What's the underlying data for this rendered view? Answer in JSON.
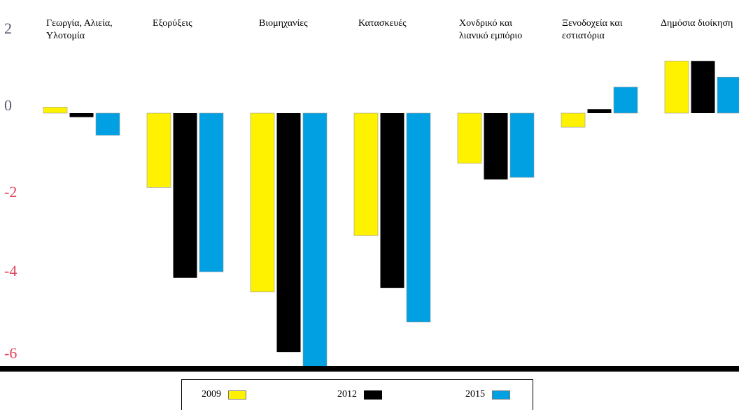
{
  "chart_data": {
    "type": "bar",
    "categories": [
      [
        "Γεωργία, Αλιεία,",
        "Υλοτομία"
      ],
      [
        "Εξορύξεις"
      ],
      [
        "Βιομηχανίες"
      ],
      [
        "Κατασκευές"
      ],
      [
        "Χονδρικό και",
        "λιανικό εμπόριο"
      ],
      [
        "Ξενοδοχεία και",
        "εστιατόρια"
      ],
      [
        "Δημόσια διοίκηση"
      ]
    ],
    "series": [
      {
        "name": "2009",
        "color": "#fff200",
        "values": [
          0.15,
          -1.85,
          -4.45,
          -3.05,
          -1.25,
          -0.35,
          1.3
        ]
      },
      {
        "name": "2012",
        "color": "#000000",
        "values": [
          -0.1,
          -4.1,
          -5.95,
          -4.35,
          -1.65,
          0.1,
          1.3
        ]
      },
      {
        "name": "2015",
        "color": "#00a0e3",
        "values": [
          -0.55,
          -3.95,
          -6.45,
          -5.2,
          -1.6,
          0.65,
          0.9
        ]
      }
    ],
    "yticks": [
      "2",
      "0",
      "-2",
      "-4",
      "-6"
    ],
    "ytick_values": [
      2,
      0,
      -2,
      -4,
      -6
    ],
    "ytick_colors": [
      "#5a5a6e",
      "#5a5a6e",
      "#e0455a",
      "#e0455a",
      "#e0455a"
    ],
    "ylim": [
      -6.6,
      2.4
    ],
    "legend_position": "bottom"
  }
}
